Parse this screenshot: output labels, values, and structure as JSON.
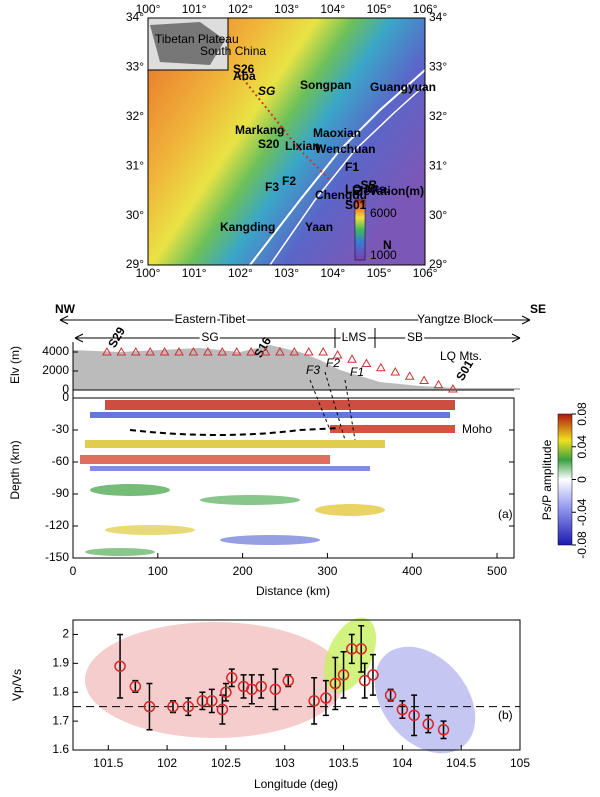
{
  "map": {
    "lon_labels": [
      "100°",
      "101°",
      "102°",
      "103°",
      "104°",
      "105°",
      "106°"
    ],
    "lat_labels": [
      "34°",
      "33°",
      "32°",
      "31°",
      "30°",
      "29°"
    ],
    "inset_labels": [
      "Tibetan Plateau",
      "South China"
    ],
    "place_labels": [
      "S26",
      "Aba",
      "SG",
      "Songpan",
      "Guangyuan",
      "Markang",
      "S20",
      "Lixian",
      "Maoxian",
      "Wenchuan",
      "F1",
      "F2",
      "F3",
      "LQ Mts.",
      "SB",
      "Chengdu",
      "S01",
      "Kangding",
      "Yaan"
    ],
    "legend_title": "Elevation(m)",
    "legend_labels": [
      "6000",
      "1000"
    ],
    "north": "N"
  },
  "chart_data": [
    {
      "type": "section",
      "top_labels": [
        "NW",
        "Eastern Tibet",
        "Yangtze Block",
        "SE"
      ],
      "block_labels": [
        "SG",
        "LMS",
        "SB"
      ],
      "annotations": [
        "S29",
        "S16",
        "S01",
        "LQ Mts.",
        "F3",
        "F2",
        "F1",
        "Moho",
        "(a)"
      ],
      "xlabel": "Distance (km)",
      "ylabel": "Depth (km)",
      "y2label": "Elv (m)",
      "xlim": [
        0,
        520
      ],
      "xticks": [
        0,
        100,
        200,
        300,
        400,
        500
      ],
      "ylim": [
        -150,
        0
      ],
      "yticks": [
        0,
        -30,
        -60,
        -90,
        -120,
        -150
      ],
      "y2lim": [
        0,
        5000
      ],
      "y2ticks": [
        0,
        2000,
        4000
      ],
      "colorbar_label": "Ps/P amplitude",
      "clim": [
        -0.08,
        0.08
      ],
      "cticks": [
        -0.08,
        -0.04,
        0,
        0.04,
        0.08
      ]
    },
    {
      "type": "scatter",
      "xlabel": "Longitude (deg)",
      "ylabel": "Vp/Vs",
      "annotation": "(b)",
      "xlim": [
        101.2,
        105
      ],
      "xticks": [
        101.5,
        102,
        102.5,
        103,
        103.5,
        104,
        104.5,
        105
      ],
      "ylim": [
        1.6,
        2.05
      ],
      "yticks": [
        1.6,
        1.7,
        1.8,
        1.9,
        2.0
      ],
      "reference": 1.75,
      "color": "#d62728",
      "x": [
        101.6,
        101.73,
        101.85,
        102.05,
        102.18,
        102.3,
        102.38,
        102.47,
        102.5,
        102.55,
        102.65,
        102.72,
        102.8,
        102.92,
        103.03,
        103.25,
        103.35,
        103.43,
        103.5,
        103.57,
        103.65,
        103.68,
        103.75,
        103.9,
        104.0,
        104.1,
        104.22,
        104.35
      ],
      "values": [
        1.89,
        1.82,
        1.75,
        1.75,
        1.75,
        1.77,
        1.77,
        1.74,
        1.8,
        1.85,
        1.82,
        1.81,
        1.82,
        1.81,
        1.84,
        1.77,
        1.78,
        1.83,
        1.86,
        1.95,
        1.95,
        1.84,
        1.86,
        1.79,
        1.74,
        1.72,
        1.69,
        1.67
      ],
      "errors": [
        0.11,
        0.02,
        0.08,
        0.02,
        0.03,
        0.03,
        0.04,
        0.05,
        0.03,
        0.03,
        0.04,
        0.05,
        0.04,
        0.07,
        0.02,
        0.08,
        0.06,
        0.09,
        0.08,
        0.05,
        0.08,
        0.06,
        0.07,
        0.02,
        0.03,
        0.07,
        0.03,
        0.03
      ]
    }
  ]
}
